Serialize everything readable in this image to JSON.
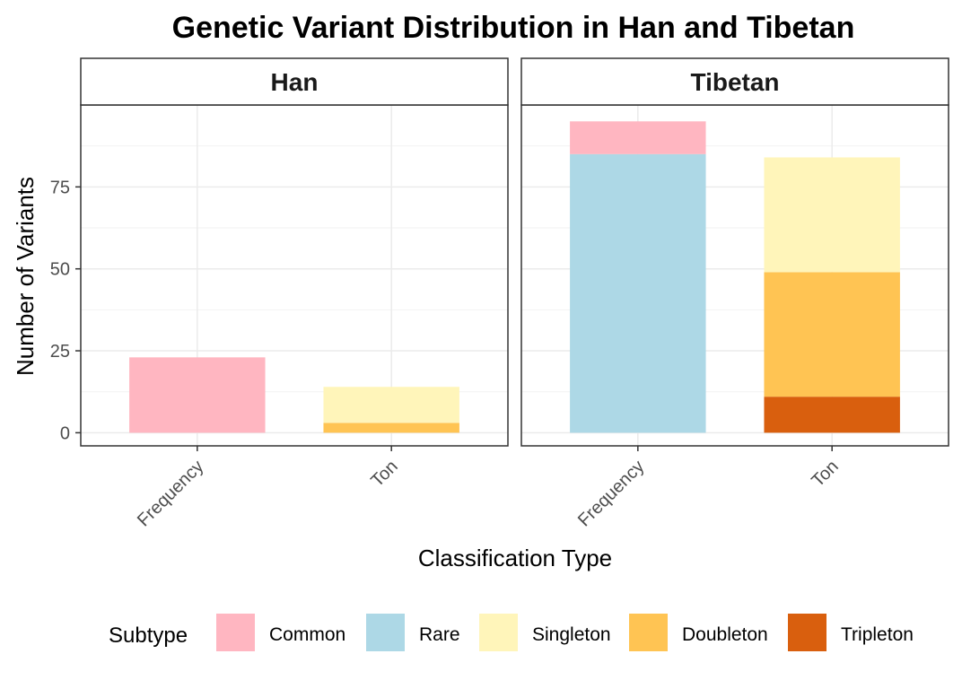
{
  "chart_data": {
    "type": "bar",
    "stacked": true,
    "title": "Genetic Variant Distribution in Han and Tibetan",
    "xlabel": "Classification Type",
    "ylabel": "Number of Variants",
    "ylim": [
      -4,
      100
    ],
    "yticks": [
      "0",
      "25",
      "50",
      "75"
    ],
    "categories": [
      "Frequency",
      "Ton"
    ],
    "grid": true,
    "legend": {
      "title": "Subtype",
      "position": "bottom",
      "items": [
        {
          "name": "Common",
          "color": "#FFB6C1"
        },
        {
          "name": "Rare",
          "color": "#ADD8E6"
        },
        {
          "name": "Singleton",
          "color": "#FFF5BA"
        },
        {
          "name": "Doubleton",
          "color": "#FFC453"
        },
        {
          "name": "Tripleton",
          "color": "#D95F0E"
        }
      ]
    },
    "panels": [
      {
        "name": "Han",
        "bars": [
          {
            "category": "Frequency",
            "segments": [
              {
                "subtype": "Common",
                "value": 23
              }
            ]
          },
          {
            "category": "Ton",
            "segments": [
              {
                "subtype": "Doubleton",
                "value": 3
              },
              {
                "subtype": "Singleton",
                "value": 11
              }
            ]
          }
        ]
      },
      {
        "name": "Tibetan",
        "bars": [
          {
            "category": "Frequency",
            "segments": [
              {
                "subtype": "Rare",
                "value": 85
              },
              {
                "subtype": "Common",
                "value": 10
              }
            ]
          },
          {
            "category": "Ton",
            "segments": [
              {
                "subtype": "Tripleton",
                "value": 11
              },
              {
                "subtype": "Doubleton",
                "value": 38
              },
              {
                "subtype": "Singleton",
                "value": 35
              }
            ]
          }
        ]
      }
    ]
  }
}
